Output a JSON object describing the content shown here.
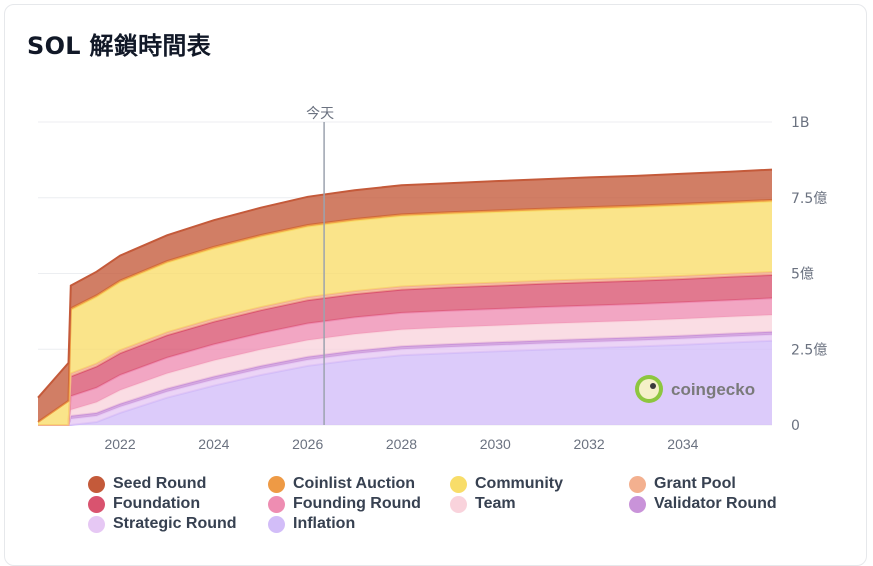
{
  "title": "SOL 解鎖時間表",
  "today_label": "今天",
  "watermark": "coingecko",
  "colors": {
    "Seed Round": "#c45a3a",
    "Coinlist Auction": "#ee9a45",
    "Community": "#f8dd69",
    "Grant Pool": "#f3b08f",
    "Foundation": "#d9536f",
    "Founding Round": "#ee8db2",
    "Team": "#f9d3dc",
    "Validator Round": "#c993d9",
    "Strategic Round": "#e6c8f4",
    "Inflation": "#d2bdf8"
  },
  "chart_data": {
    "type": "area",
    "stacked": true,
    "title": "SOL 解鎖時間表",
    "x_ticks": [
      "2022",
      "2024",
      "2026",
      "2028",
      "2030",
      "2032",
      "2034"
    ],
    "y_ticks": [
      "0",
      "2.5億",
      "5億",
      "7.5億",
      "1B"
    ],
    "ylim": [
      0,
      1000000000
    ],
    "xlim": [
      2020.25,
      2035.9
    ],
    "today": 2026.35,
    "grid": true,
    "legend_position": "bottom",
    "x": [
      2020.25,
      2020.9,
      2020.95,
      2021.5,
      2022,
      2023,
      2024,
      2025,
      2026,
      2027,
      2028,
      2029,
      2030,
      2031,
      2032,
      2033,
      2034,
      2035,
      2035.9
    ],
    "series": [
      {
        "name": "Inflation",
        "values": [
          0,
          0,
          0,
          10000000,
          40000000,
          90000000,
          130000000,
          165000000,
          195000000,
          215000000,
          230000000,
          237000000,
          243000000,
          249000000,
          254000000,
          259000000,
          265000000,
          272000000,
          278000000
        ]
      },
      {
        "name": "Strategic Round",
        "values": [
          0,
          0,
          20000000,
          20000000,
          20000000,
          20000000,
          20000000,
          20000000,
          20000000,
          20000000,
          20000000,
          20000000,
          20000000,
          20000000,
          20000000,
          20000000,
          20000000,
          20000000,
          20000000
        ]
      },
      {
        "name": "Validator Round",
        "values": [
          0,
          0,
          10000000,
          10000000,
          10000000,
          10000000,
          10000000,
          10000000,
          10000000,
          10000000,
          10000000,
          10000000,
          10000000,
          10000000,
          10000000,
          10000000,
          10000000,
          10000000,
          10000000
        ]
      },
      {
        "name": "Team",
        "values": [
          0,
          0,
          20000000,
          35000000,
          45000000,
          50000000,
          53000000,
          54000000,
          55000000,
          55000000,
          55000000,
          55000000,
          55000000,
          55000000,
          55000000,
          55000000,
          55000000,
          55000000,
          55000000
        ]
      },
      {
        "name": "Founding Round",
        "values": [
          0,
          0,
          45000000,
          48000000,
          50000000,
          52000000,
          53000000,
          54000000,
          55000000,
          55000000,
          55000000,
          55000000,
          55000000,
          55000000,
          55000000,
          55000000,
          55000000,
          55000000,
          55000000
        ]
      },
      {
        "name": "Foundation",
        "values": [
          0,
          0,
          65000000,
          70000000,
          72000000,
          74000000,
          75000000,
          76000000,
          77000000,
          77000000,
          77000000,
          77000000,
          77000000,
          77000000,
          77000000,
          77000000,
          77000000,
          77000000,
          77000000
        ]
      },
      {
        "name": "Grant Pool",
        "values": [
          0,
          0,
          10000000,
          10000000,
          10000000,
          10000000,
          10000000,
          10000000,
          10000000,
          10000000,
          10000000,
          10000000,
          10000000,
          10000000,
          10000000,
          10000000,
          10000000,
          10000000,
          10000000
        ]
      },
      {
        "name": "Community",
        "values": [
          10000000,
          80000000,
          210000000,
          220000000,
          225000000,
          230000000,
          232000000,
          233000000,
          233000000,
          233000000,
          233000000,
          233000000,
          233000000,
          233000000,
          233000000,
          233000000,
          233000000,
          233000000,
          233000000
        ]
      },
      {
        "name": "Coinlist Auction",
        "values": [
          0,
          0,
          5000000,
          5000000,
          5000000,
          5000000,
          5000000,
          5000000,
          5000000,
          5000000,
          5000000,
          5000000,
          5000000,
          5000000,
          5000000,
          5000000,
          5000000,
          5000000,
          5000000
        ]
      },
      {
        "name": "Seed Round",
        "values": [
          80000000,
          125000000,
          75000000,
          78000000,
          82000000,
          85000000,
          88000000,
          90000000,
          93000000,
          95000000,
          96000000,
          96000000,
          97000000,
          97000000,
          98000000,
          98000000,
          99000000,
          99000000,
          100000000
        ]
      }
    ]
  },
  "legend": [
    {
      "label": "Seed Round",
      "color": "#c45a3a"
    },
    {
      "label": "Coinlist Auction",
      "color": "#ee9a45"
    },
    {
      "label": "Community",
      "color": "#f8dd69"
    },
    {
      "label": "Grant Pool",
      "color": "#f3b08f"
    },
    {
      "label": "Foundation",
      "color": "#d9536f"
    },
    {
      "label": "Founding Round",
      "color": "#ee8db2"
    },
    {
      "label": "Team",
      "color": "#f9d3dc"
    },
    {
      "label": "Validator Round",
      "color": "#c993d9"
    },
    {
      "label": "Strategic Round",
      "color": "#e6c8f4"
    },
    {
      "label": "Inflation",
      "color": "#d2bdf8"
    }
  ]
}
